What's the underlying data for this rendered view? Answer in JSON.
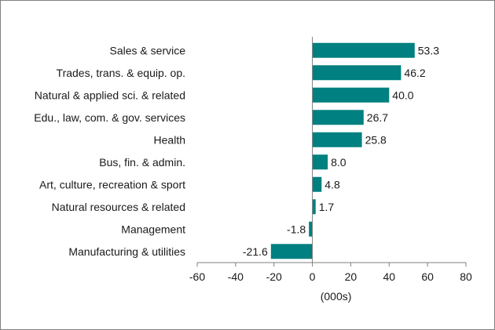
{
  "chart_data": {
    "type": "bar",
    "orientation": "horizontal",
    "categories": [
      "Sales & service",
      "Trades, trans. & equip. op.",
      "Natural & applied sci. & related",
      "Edu., law, com. & gov. services",
      "Health",
      "Bus, fin. & admin.",
      "Art, culture, recreation & sport",
      "Natural resources & related",
      "Management",
      "Manufacturing & utilities"
    ],
    "values": [
      53.3,
      46.2,
      40.0,
      26.7,
      25.8,
      8.0,
      4.8,
      1.7,
      -1.8,
      -21.6
    ],
    "value_labels": [
      "53.3",
      "46.2",
      "40.0",
      "26.7",
      "25.8",
      "8.0",
      "4.8",
      "1.7",
      "-1.8",
      "-21.6"
    ],
    "xlabel": "(000s)",
    "ylabel": "",
    "title": "",
    "xlim": [
      -60,
      80
    ],
    "xticks": [
      -60,
      -40,
      -20,
      0,
      20,
      40,
      60,
      80
    ],
    "xtick_labels": [
      "-60",
      "-40",
      "-20",
      "0",
      "20",
      "40",
      "60",
      "80"
    ],
    "grid": false,
    "bar_color": "#008080",
    "axis_color": "#7f7f7f"
  }
}
